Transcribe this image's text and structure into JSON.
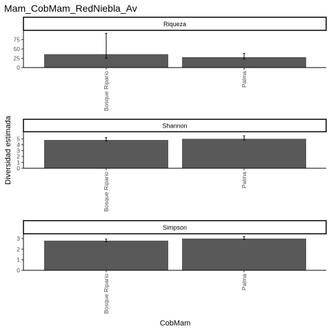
{
  "chart_data": {
    "type": "bar",
    "title": "Mam_CobMam_RedNiebla_Av",
    "xlabel": "CobMam",
    "ylabel": "Diversidad estimada",
    "categories": [
      "Bosque Ripario",
      "Palma"
    ],
    "grid": false,
    "colors": {
      "bar": "#595959",
      "strip_fill": "#ffffff",
      "strip_border": "#000000",
      "error_bar": "#000000"
    },
    "panels": [
      {
        "strip": "Riqueza",
        "ylim": [
          0,
          100
        ],
        "yticks": [
          0,
          25,
          50,
          75
        ],
        "values": [
          36,
          28
        ],
        "error_low": [
          25,
          23
        ],
        "error_high": [
          92,
          38
        ]
      },
      {
        "strip": "Shannon",
        "ylim": [
          0,
          6.2
        ],
        "yticks": [
          0,
          1,
          2,
          3,
          4,
          5
        ],
        "values": [
          4.8,
          5.0
        ],
        "error_low": [
          4.6,
          4.8
        ],
        "error_high": [
          5.2,
          5.5
        ]
      },
      {
        "strip": "Simpson",
        "ylim": [
          0,
          3.45
        ],
        "yticks": [
          0,
          1,
          2,
          3
        ],
        "values": [
          2.8,
          3.0
        ],
        "error_low": [
          2.7,
          2.9
        ],
        "error_high": [
          2.95,
          3.2
        ]
      }
    ]
  }
}
